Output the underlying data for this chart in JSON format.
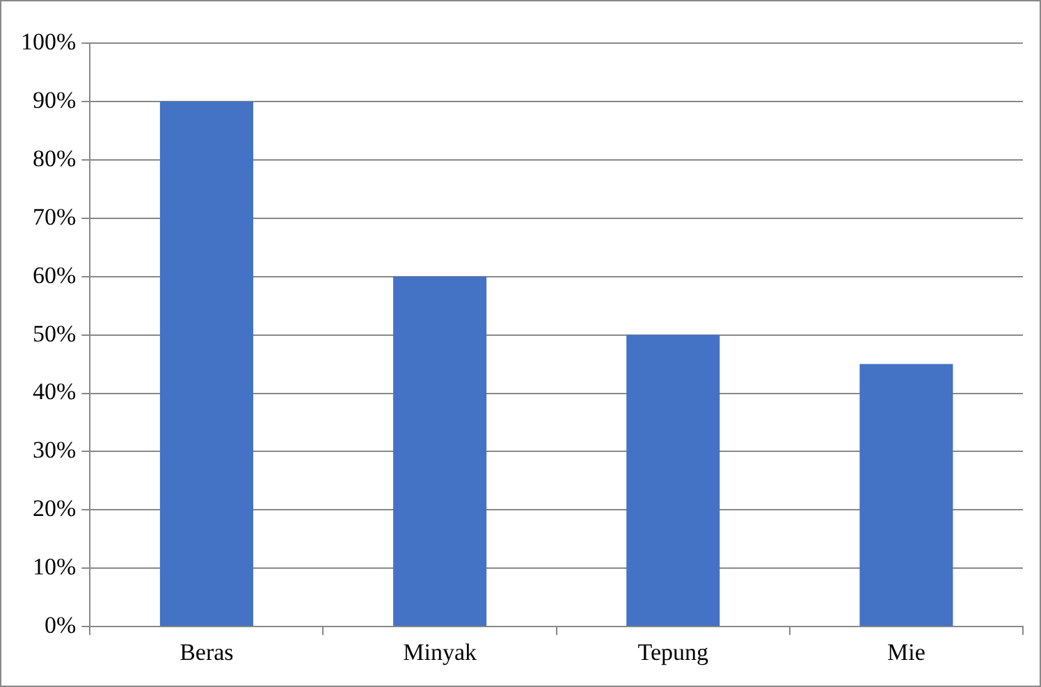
{
  "chart_data": {
    "type": "bar",
    "categories": [
      "Beras",
      "Minyak",
      "Tepung",
      "Mie"
    ],
    "values": [
      90,
      60,
      50,
      45
    ],
    "color": "#4472c4",
    "ylim": [
      0,
      100
    ],
    "yticks": [
      {
        "value": 0,
        "label": "0%"
      },
      {
        "value": 10,
        "label": "10%"
      },
      {
        "value": 20,
        "label": "20%"
      },
      {
        "value": 30,
        "label": "30%"
      },
      {
        "value": 40,
        "label": "40%"
      },
      {
        "value": 50,
        "label": "50%"
      },
      {
        "value": 60,
        "label": "60%"
      },
      {
        "value": 70,
        "label": "70%"
      },
      {
        "value": 80,
        "label": "80%"
      },
      {
        "value": 90,
        "label": "90%"
      },
      {
        "value": 100,
        "label": "100%"
      }
    ],
    "grid": "y"
  }
}
